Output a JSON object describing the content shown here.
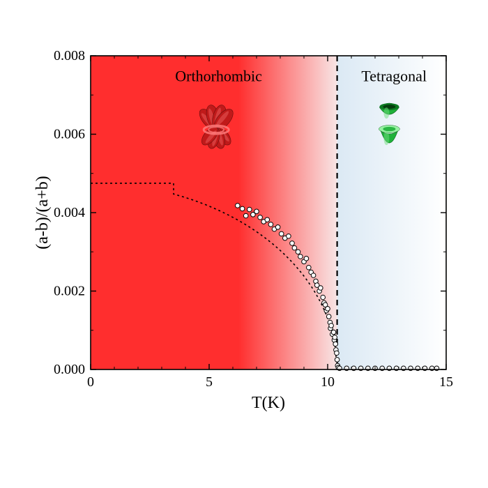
{
  "chart": {
    "type": "scatter",
    "xlabel": "T(K)",
    "ylabel": "(a-b)/(a+b)",
    "xlabel_fontsize": 24,
    "ylabel_fontsize": 24,
    "tick_fontsize": 20,
    "region_label_fontsize": 22,
    "xlim": [
      0,
      15
    ],
    "ylim": [
      0,
      0.008
    ],
    "xticks": [
      0,
      5,
      10,
      15
    ],
    "yticks": [
      0.0,
      0.002,
      0.004,
      0.006,
      0.008
    ],
    "ytick_labels": [
      "0.000",
      "0.002",
      "0.004",
      "0.006",
      "0.008"
    ],
    "transition_T": 10.4,
    "plateau_y": 0.00475,
    "background": {
      "left_color": "#ff2e2e",
      "mid_color": "#f8e5e5",
      "right_color": "#dbe9f4",
      "outer_color": "#ffffff"
    },
    "regions": {
      "left_label": "Orthorhombic",
      "right_label": "Tetragonal"
    },
    "marker": {
      "fill": "#ffffff",
      "stroke": "#000000",
      "radius": 3.3,
      "stroke_width": 1
    },
    "axis_color": "#000000",
    "tick_len_major": 8,
    "tick_len_minor": 4,
    "dashed_curve_color": "#000000",
    "vline_dash": "8,6",
    "curve_dash": "3,4",
    "icons": {
      "ortho_body": "#c01a1a",
      "ortho_highlight": "#e85a5a",
      "ortho_ring": "#ff7a7a",
      "tetra_body": "#1fb13a",
      "tetra_highlight": "#6fe07d",
      "tetra_ring": "#8ff29a"
    },
    "data_points": [
      [
        6.2,
        0.00418
      ],
      [
        6.4,
        0.0041
      ],
      [
        6.55,
        0.00392
      ],
      [
        6.7,
        0.00408
      ],
      [
        6.85,
        0.00395
      ],
      [
        7.0,
        0.00403
      ],
      [
        7.15,
        0.00388
      ],
      [
        7.3,
        0.00377
      ],
      [
        7.45,
        0.00382
      ],
      [
        7.6,
        0.0037
      ],
      [
        7.75,
        0.00358
      ],
      [
        7.9,
        0.00363
      ],
      [
        8.05,
        0.00346
      ],
      [
        8.2,
        0.00335
      ],
      [
        8.35,
        0.0034
      ],
      [
        8.5,
        0.00322
      ],
      [
        8.6,
        0.0031
      ],
      [
        8.75,
        0.003
      ],
      [
        8.85,
        0.00288
      ],
      [
        9.0,
        0.00275
      ],
      [
        9.1,
        0.00283
      ],
      [
        9.2,
        0.0026
      ],
      [
        9.3,
        0.00248
      ],
      [
        9.4,
        0.0024
      ],
      [
        9.5,
        0.00225
      ],
      [
        9.55,
        0.00215
      ],
      [
        9.65,
        0.002
      ],
      [
        9.7,
        0.00208
      ],
      [
        9.8,
        0.00184
      ],
      [
        9.85,
        0.0017
      ],
      [
        9.9,
        0.00165
      ],
      [
        9.95,
        0.0015
      ],
      [
        10.0,
        0.00155
      ],
      [
        10.05,
        0.00135
      ],
      [
        10.1,
        0.0012
      ],
      [
        10.12,
        0.00105
      ],
      [
        10.15,
        0.00112
      ],
      [
        10.2,
        0.0009
      ],
      [
        10.25,
        0.00095
      ],
      [
        10.28,
        0.00075
      ],
      [
        10.3,
        0.00082
      ],
      [
        10.33,
        0.00065
      ],
      [
        10.35,
        0.0005
      ],
      [
        10.38,
        0.00042
      ],
      [
        10.4,
        0.00025
      ],
      [
        10.42,
        0.0001
      ],
      [
        10.45,
        5e-05
      ],
      [
        10.5,
        3e-05
      ],
      [
        10.8,
        3e-05
      ],
      [
        11.1,
        3e-05
      ],
      [
        11.4,
        3e-05
      ],
      [
        11.7,
        3e-05
      ],
      [
        12.0,
        3e-05
      ],
      [
        12.3,
        3e-05
      ],
      [
        12.6,
        3e-05
      ],
      [
        12.9,
        3e-05
      ],
      [
        13.2,
        3e-05
      ],
      [
        13.5,
        3e-05
      ],
      [
        13.8,
        3e-05
      ],
      [
        14.1,
        3e-05
      ],
      [
        14.4,
        3e-05
      ],
      [
        14.6,
        3e-05
      ]
    ]
  }
}
